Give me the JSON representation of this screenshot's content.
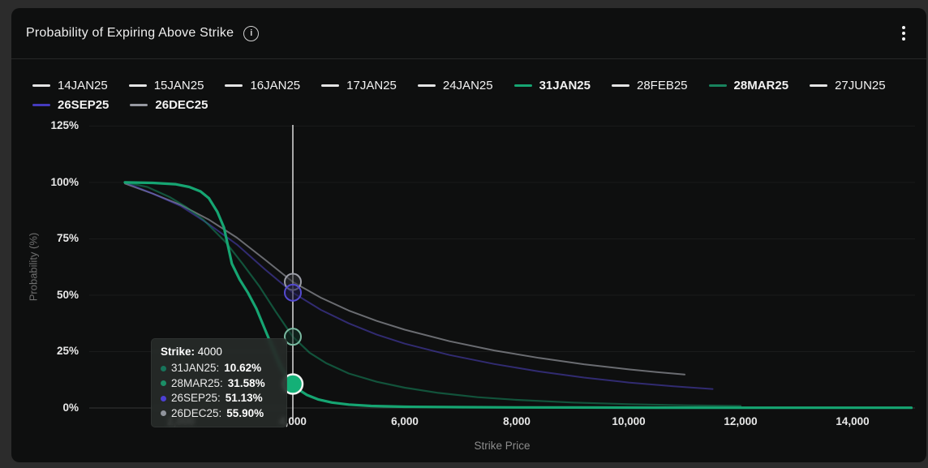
{
  "header": {
    "title": "Probability of Expiring Above Strike",
    "info_icon_glyph": "i"
  },
  "legend": {
    "items": [
      {
        "label": "14JAN25",
        "color": "#e4e4e4",
        "bold": false,
        "active": false
      },
      {
        "label": "15JAN25",
        "color": "#e4e4e4",
        "bold": false,
        "active": false
      },
      {
        "label": "16JAN25",
        "color": "#e4e4e4",
        "bold": false,
        "active": false
      },
      {
        "label": "17JAN25",
        "color": "#e4e4e4",
        "bold": false,
        "active": false
      },
      {
        "label": "24JAN25",
        "color": "#e4e4e4",
        "bold": false,
        "active": false
      },
      {
        "label": "31JAN25",
        "color": "#16a572",
        "bold": true,
        "active": true
      },
      {
        "label": "28FEB25",
        "color": "#e4e4e4",
        "bold": false,
        "active": false
      },
      {
        "label": "28MAR25",
        "color": "#18835d",
        "bold": true,
        "active": true
      },
      {
        "label": "27JUN25",
        "color": "#e4e4e4",
        "bold": false,
        "active": false
      },
      {
        "label": "26SEP25",
        "color": "#453bbd",
        "bold": true,
        "active": true
      },
      {
        "label": "26DEC25",
        "color": "#9799a1",
        "bold": true,
        "active": true
      }
    ]
  },
  "chart_data": {
    "type": "line",
    "title": "Probability of Expiring Above Strike",
    "xlabel": "Strike Price",
    "ylabel": "Probability (%)",
    "xlim": [
      400,
      15300
    ],
    "ylim": [
      0,
      125
    ],
    "grid": "faint-horizontal",
    "legend_position": "top",
    "x_ticks": [
      2000,
      4000,
      6000,
      8000,
      10000,
      12000,
      14000
    ],
    "x_tick_labels": [
      "2,000",
      "4,000",
      "6,000",
      "8,000",
      "10,000",
      "12,000",
      "14,000"
    ],
    "y_ticks": [
      125,
      100,
      75,
      50,
      25,
      0
    ],
    "y_tick_labels": [
      "125%",
      "100%",
      "75%",
      "50%",
      "25%",
      "0%"
    ],
    "series": [
      {
        "name": "26DEC25",
        "color": "#a8aab2",
        "opacity": 0.6,
        "width": 2,
        "points": [
          [
            1000,
            99.5
          ],
          [
            1500,
            95
          ],
          [
            2000,
            90
          ],
          [
            2500,
            83.5
          ],
          [
            3000,
            75.5
          ],
          [
            3500,
            65.8
          ],
          [
            4000,
            55.9
          ],
          [
            4500,
            48.9
          ],
          [
            5000,
            43.2
          ],
          [
            5500,
            38.6
          ],
          [
            6000,
            34.7
          ],
          [
            6800,
            29.6
          ],
          [
            7600,
            25.5
          ],
          [
            8400,
            22.2
          ],
          [
            9200,
            19.4
          ],
          [
            10000,
            17.1
          ],
          [
            10500,
            15.9
          ],
          [
            11000,
            14.8
          ]
        ]
      },
      {
        "name": "26SEP25",
        "color": "#5348d4",
        "opacity": 0.5,
        "width": 2,
        "points": [
          [
            1000,
            100
          ],
          [
            1500,
            95
          ],
          [
            2000,
            89.5
          ],
          [
            2500,
            81.5
          ],
          [
            3000,
            72.5
          ],
          [
            3500,
            61.5
          ],
          [
            4000,
            51.13
          ],
          [
            4500,
            43.5
          ],
          [
            5000,
            37.5
          ],
          [
            5500,
            32.5
          ],
          [
            6000,
            28.5
          ],
          [
            6800,
            23.5
          ],
          [
            7600,
            19.5
          ],
          [
            8400,
            16.2
          ],
          [
            9200,
            13.5
          ],
          [
            10000,
            11.3
          ],
          [
            10800,
            9.6
          ],
          [
            11500,
            8.4
          ]
        ]
      },
      {
        "name": "28MAR25",
        "color": "#168c60",
        "opacity": 0.55,
        "width": 2.2,
        "points": [
          [
            1000,
            100
          ],
          [
            1400,
            98
          ],
          [
            1800,
            93.5
          ],
          [
            2100,
            89
          ],
          [
            2400,
            83.5
          ],
          [
            2800,
            73.5
          ],
          [
            3100,
            64
          ],
          [
            3400,
            54
          ],
          [
            3700,
            42.5
          ],
          [
            4000,
            31.58
          ],
          [
            4300,
            24.5
          ],
          [
            4600,
            19.8
          ],
          [
            5000,
            15.3
          ],
          [
            5500,
            11.6
          ],
          [
            6000,
            9.0
          ],
          [
            6600,
            6.7
          ],
          [
            7300,
            4.8
          ],
          [
            8000,
            3.6
          ],
          [
            9000,
            2.4
          ],
          [
            10000,
            1.7
          ],
          [
            11000,
            1.2
          ],
          [
            12000,
            0.9
          ]
        ]
      },
      {
        "name": "31JAN25",
        "color": "#16a572",
        "opacity": 1,
        "width": 3.2,
        "points": [
          [
            1000,
            100
          ],
          [
            1500,
            99.8
          ],
          [
            1900,
            99.2
          ],
          [
            2150,
            98
          ],
          [
            2350,
            96
          ],
          [
            2500,
            93
          ],
          [
            2650,
            87
          ],
          [
            2770,
            80
          ],
          [
            2910,
            64
          ],
          [
            3050,
            57
          ],
          [
            3200,
            51
          ],
          [
            3350,
            44
          ],
          [
            3500,
            35
          ],
          [
            3650,
            26
          ],
          [
            3800,
            17.5
          ],
          [
            3900,
            13.5
          ],
          [
            4000,
            10.62
          ],
          [
            4100,
            8.2
          ],
          [
            4250,
            5.8
          ],
          [
            4450,
            3.8
          ],
          [
            4700,
            2.4
          ],
          [
            5000,
            1.5
          ],
          [
            5400,
            0.9
          ],
          [
            6000,
            0.55
          ],
          [
            7000,
            0.35
          ],
          [
            8000,
            0.25
          ],
          [
            9000,
            0.2
          ],
          [
            10500,
            0.15
          ],
          [
            12000,
            0.12
          ],
          [
            13500,
            0.1
          ],
          [
            15050,
            0.1
          ]
        ]
      }
    ]
  },
  "crosshair": {
    "x_value": 4000,
    "line_color": "rgba(255,255,255,0.85)",
    "markers": [
      {
        "series": "26DEC25",
        "value": 55.9,
        "fill": "rgba(45,47,53,0.55)",
        "ring": "#9b9da6",
        "radius": 10
      },
      {
        "series": "26SEP25",
        "value": 51.13,
        "fill": "rgba(33,29,74,0.55)",
        "ring": "#544ad1",
        "radius": 10
      },
      {
        "series": "28MAR25",
        "value": 31.58,
        "fill": "rgba(16,49,38,0.55)",
        "ring": "#79b9a0",
        "radius": 10
      },
      {
        "series": "31JAN25",
        "value": 10.62,
        "fill": "#14b077",
        "ring": "#f2f5f3",
        "radius": 12
      }
    ]
  },
  "tooltip": {
    "title_label": "Strike:",
    "title_value": "4000",
    "rows": [
      {
        "label": "31JAN25:",
        "value": "10.62%",
        "color": "#17745a"
      },
      {
        "label": "28MAR25:",
        "value": "31.58%",
        "color": "#1b8f66"
      },
      {
        "label": "26SEP25:",
        "value": "51.13%",
        "color": "#4c40d2"
      },
      {
        "label": "26DEC25:",
        "value": "55.90%",
        "color": "#90949c"
      }
    ]
  }
}
